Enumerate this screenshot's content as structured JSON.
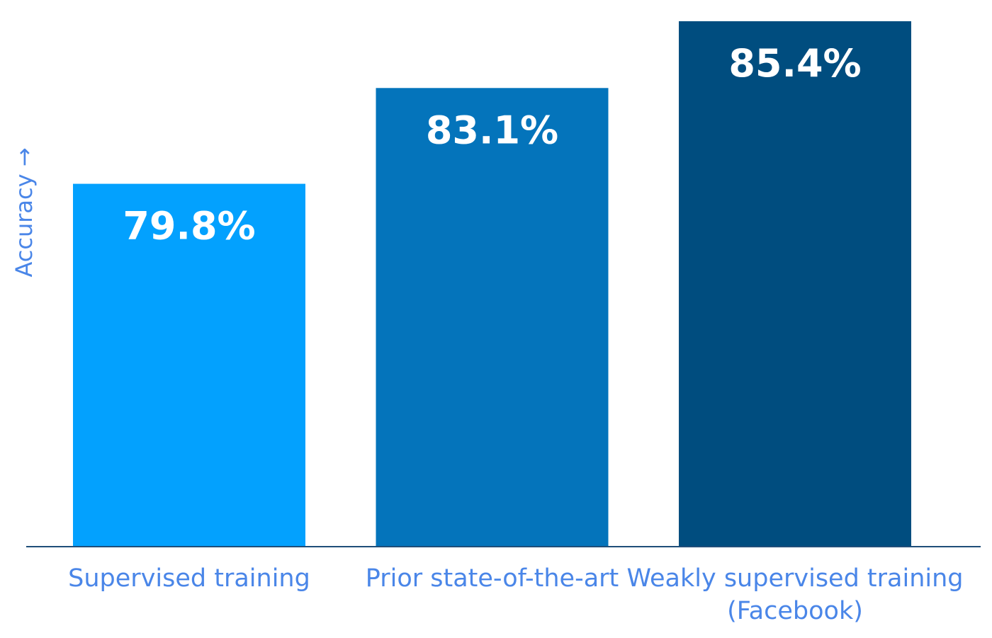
{
  "chart_data": {
    "type": "bar",
    "title": "",
    "xlabel": "",
    "ylabel": "Accuracy →",
    "categories": [
      [
        "Supervised training"
      ],
      [
        "Prior state-of-the-art"
      ],
      [
        "Weakly supervised training",
        "(Facebook)"
      ]
    ],
    "values": [
      79.8,
      83.1,
      85.4
    ],
    "value_labels": [
      "79.8%",
      "83.1%",
      "85.4%"
    ],
    "ylim": [
      67.3,
      85.4
    ],
    "grid": false,
    "legend": "none"
  },
  "colors": {
    "bars": [
      "#03a1fe",
      "#0474bb",
      "#004d7f"
    ],
    "value_text": "#ffffff",
    "label_text": "#4a86e8",
    "axis_line": "#1f4e79"
  }
}
